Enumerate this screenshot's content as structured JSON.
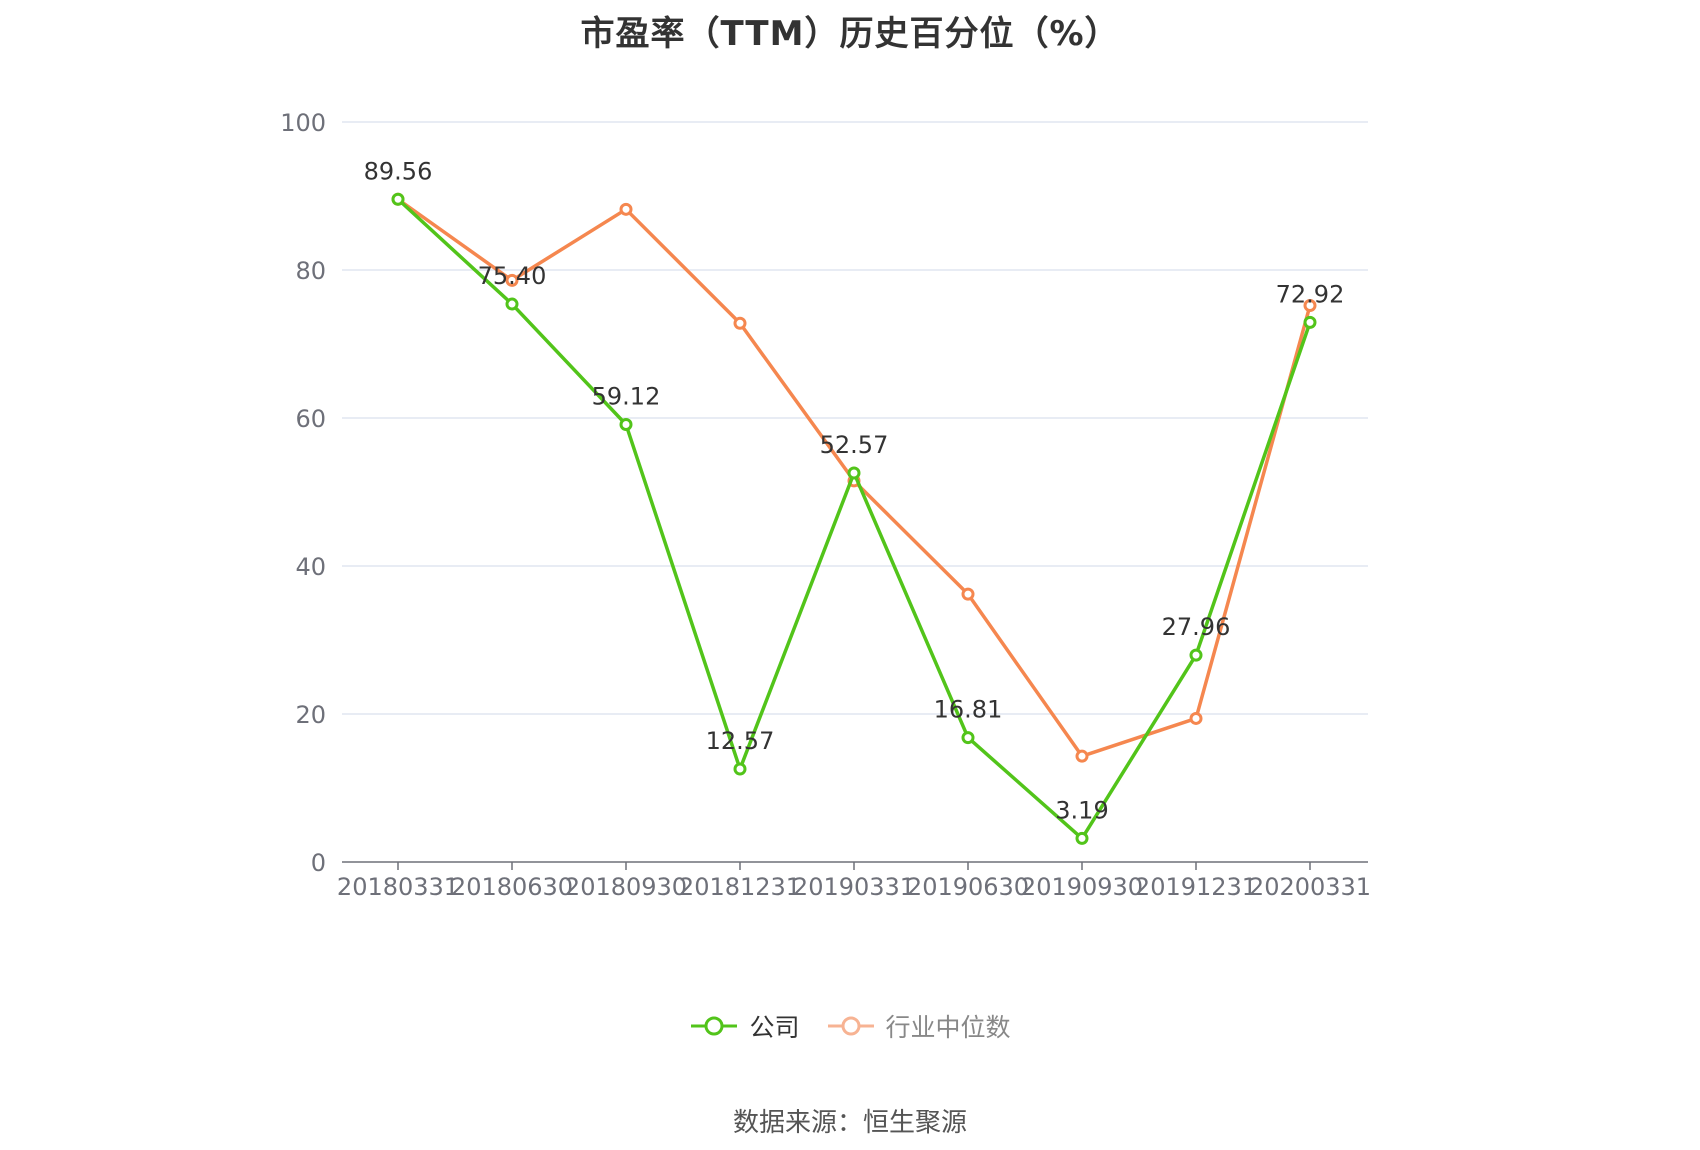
{
  "chart_data": {
    "type": "line",
    "title": "市盈率（TTM）历史百分位（%）",
    "categories": [
      "20180331",
      "20180630",
      "20180930",
      "20181231",
      "20190331",
      "20190630",
      "20190930",
      "20191231",
      "20200331"
    ],
    "yticks": [
      0,
      20,
      40,
      60,
      80,
      100
    ],
    "ylim": [
      0,
      100
    ],
    "grid": true,
    "legend_position": "bottom",
    "series": [
      {
        "name": "公司",
        "color": "#52c41a",
        "values": [
          89.56,
          75.4,
          59.12,
          12.57,
          52.57,
          16.81,
          3.19,
          27.96,
          72.92
        ],
        "labels": [
          "89.56",
          "75.40",
          "59.12",
          "12.57",
          "52.57",
          "16.81",
          "3.19",
          "27.96",
          "72.92"
        ]
      },
      {
        "name": "行业中位数",
        "color": "#f5874f",
        "values": [
          89.56,
          78.6,
          88.2,
          72.8,
          51.5,
          36.2,
          14.3,
          19.4,
          75.2
        ]
      }
    ]
  },
  "legend": {
    "company": "公司",
    "industry": "行业中位数",
    "industry_symbol_color": "#f7b393"
  },
  "source": "数据来源：恒生聚源"
}
